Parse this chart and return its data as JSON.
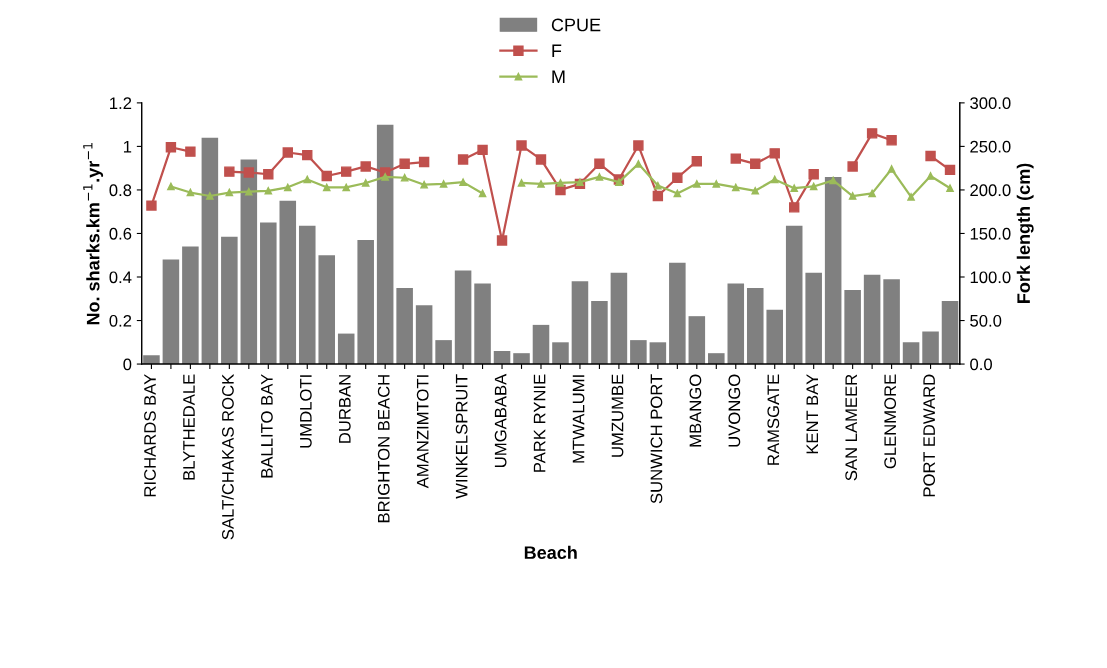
{
  "chart_data": {
    "type": "bar",
    "xlabel": "Beach",
    "ylabel": "No. sharks.km$^{−1}$.yr$^{−1}$",
    "y2label": "Fork length (cm)",
    "categories": [
      "RICHARDS BAY",
      null,
      "BLYTHEDALE",
      null,
      "SALT/CHAKAS ROCK",
      null,
      "BALLITO BAY",
      null,
      "UMDLOTI",
      null,
      "DURBAN",
      null,
      "BRIGHTON BEACH",
      null,
      "AMANZIMTOTI",
      null,
      "WINKELSPRUIT",
      null,
      "UMGABABA",
      null,
      "PARK RYNIE",
      null,
      "MTWALUMI",
      null,
      "UMZUMBE",
      null,
      "SUNWICH PORT",
      null,
      "MBANGO",
      null,
      "UVONGO",
      null,
      "RAMSGATE",
      null,
      "KENT BAY",
      null,
      "SAN LAMEER",
      null,
      "GLENMORE",
      null,
      "PORT EDWARD",
      null
    ],
    "series": [
      {
        "name": "CPUE",
        "color": "#808080",
        "values": [
          0.04,
          0.48,
          0.54,
          1.04,
          0.585,
          0.94,
          0.65,
          0.75,
          0.635,
          0.5,
          0.14,
          0.57,
          1.1,
          0.35,
          0.27,
          0.11,
          0.43,
          0.37,
          0.06,
          0.05,
          0.18,
          0.1,
          0.38,
          0.29,
          0.42,
          0.11,
          0.1,
          0.465,
          0.22,
          0.05,
          0.37,
          0.35,
          0.25,
          0.635,
          0.42,
          0.86,
          0.34,
          0.41,
          0.39,
          0.1,
          0.15,
          0.29
        ]
      },
      {
        "name": "F",
        "type": "line",
        "axis": "y2",
        "color": "#c0504d",
        "marker": "square",
        "values": [
          182,
          249,
          244,
          null,
          221,
          220,
          218,
          243,
          240,
          216,
          221,
          227,
          220,
          230,
          232,
          null,
          235,
          246,
          142,
          251,
          235,
          200,
          207,
          230,
          212,
          251,
          193,
          214,
          233,
          null,
          236,
          230,
          242,
          180,
          218,
          null,
          227,
          265,
          257,
          null,
          239,
          223
        ]
      },
      {
        "name": "M",
        "type": "line",
        "axis": "y2",
        "color": "#9bbb59",
        "marker": "triangle",
        "values": [
          null,
          204,
          197,
          193,
          197,
          198,
          199,
          203,
          212,
          203,
          203,
          208,
          215,
          214,
          206,
          207,
          209,
          196,
          null,
          208,
          207,
          208,
          209,
          215,
          209,
          230,
          205,
          196,
          207,
          207,
          203,
          199,
          212,
          202,
          204,
          211,
          193,
          196,
          224,
          192,
          216,
          202
        ]
      }
    ],
    "ylim": [
      0,
      1.2
    ],
    "yticks": [
      0,
      0.2,
      0.4,
      0.6,
      0.8,
      1,
      1.2
    ],
    "y2lim": [
      0,
      300
    ],
    "y2ticks": [
      {
        "value": 0,
        "label": "0.0"
      },
      {
        "value": 50,
        "label": "50.0"
      },
      {
        "value": 100,
        "label": "100.0"
      },
      {
        "value": 150,
        "label": "150.0"
      },
      {
        "value": 200,
        "label": "200.0"
      },
      {
        "value": 250,
        "label": "250.0"
      },
      {
        "value": 300,
        "label": "300.0"
      }
    ],
    "legend": "top",
    "grid": false
  }
}
